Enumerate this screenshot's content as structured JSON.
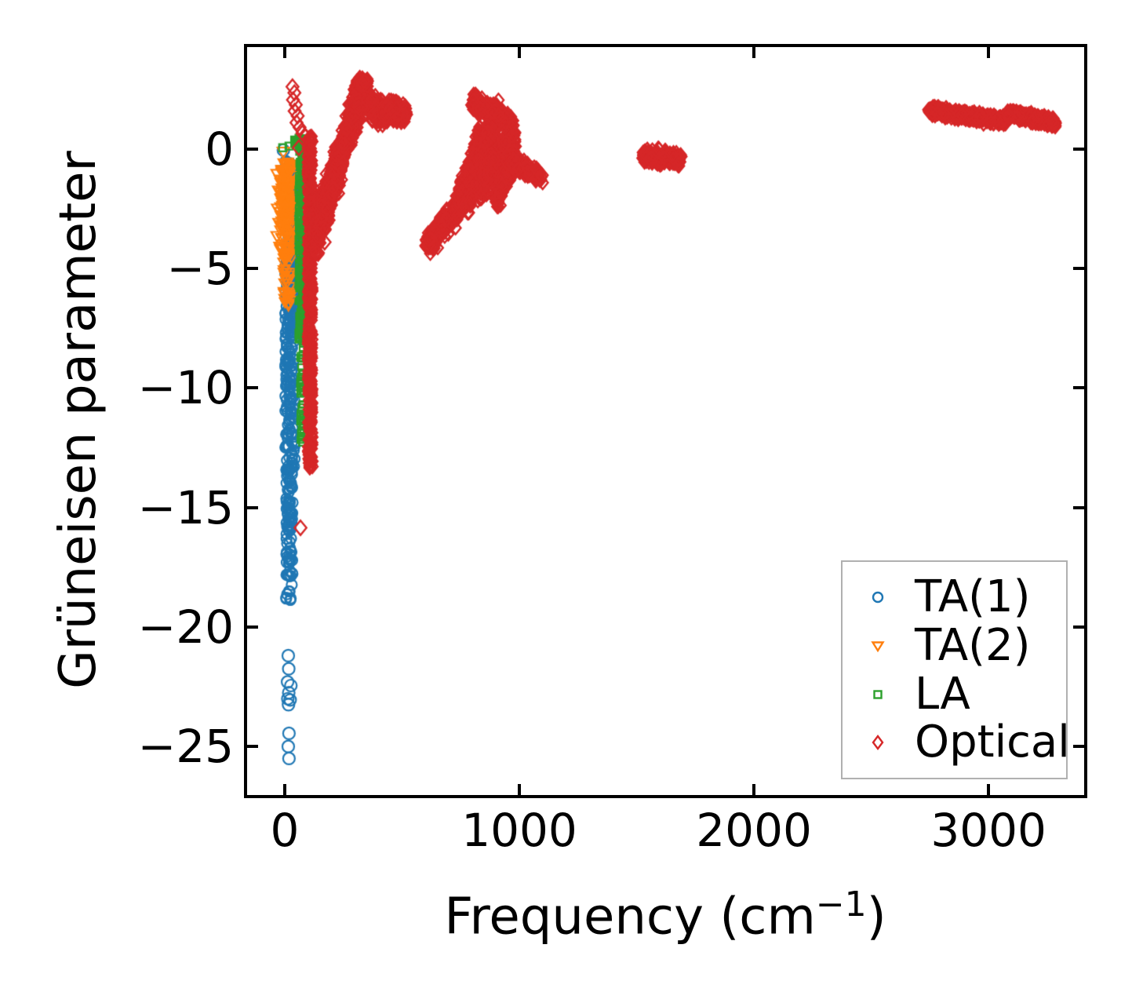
{
  "chart_data": {
    "type": "scatter",
    "title": "",
    "xlabel_parts": {
      "prefix": "Frequency (cm",
      "sup": "−1",
      "suffix": ")"
    },
    "ylabel": "Grüneisen parameter",
    "xlim": [
      -160.5,
      3407.5
    ],
    "ylim": [
      -27.03,
      4.26
    ],
    "grid": false,
    "legend_position": "lower right",
    "x_ticks": [
      {
        "value": 0,
        "label": "0"
      },
      {
        "value": 1000,
        "label": "1000"
      },
      {
        "value": 2000,
        "label": "2000"
      },
      {
        "value": 3000,
        "label": "3000"
      }
    ],
    "y_ticks": [
      {
        "value": 0,
        "label": "0"
      },
      {
        "value": -5,
        "label": "−5"
      },
      {
        "value": -10,
        "label": "−10"
      },
      {
        "value": -15,
        "label": "−15"
      },
      {
        "value": -20,
        "label": "−20"
      },
      {
        "value": -25,
        "label": "−25"
      }
    ],
    "series": [
      {
        "name": "TA(1)",
        "marker": "circle",
        "color": "#1f77b4",
        "size": 13,
        "lw": 2.2,
        "bands": [
          {
            "x0": 22,
            "y0": -0.5,
            "x1": 22,
            "y1": -13.5,
            "xw": 20,
            "w": 0.3,
            "n": 260
          },
          {
            "x0": 20,
            "y0": -13.5,
            "x1": 20,
            "y1": -18.9,
            "xw": 14,
            "w": 0.3,
            "n": 90
          },
          {
            "x0": 28,
            "y0": -1.0,
            "x1": 28,
            "y1": -8.0,
            "xw": 14,
            "w": 0.3,
            "n": 120
          }
        ],
        "points": [
          [
            -6,
            -0.05
          ],
          [
            38,
            -1.3
          ],
          [
            30,
            -2.0
          ],
          [
            24,
            -2.6
          ],
          [
            34,
            -3.2
          ],
          [
            15,
            -21.2
          ],
          [
            17,
            -21.75
          ],
          [
            12,
            -22.3
          ],
          [
            26,
            -22.45
          ],
          [
            17,
            -22.75
          ],
          [
            13,
            -23.0
          ],
          [
            23,
            -23.05
          ],
          [
            16,
            -23.25
          ],
          [
            18,
            -24.45
          ],
          [
            15,
            -25.0
          ],
          [
            18,
            -25.5
          ]
        ]
      },
      {
        "name": "TA(2)",
        "marker": "triangle-down",
        "color": "#ff7f0e",
        "size": 13,
        "lw": 2.2,
        "bands": [
          {
            "x0": 6,
            "y0": -0.5,
            "x1": 6,
            "y1": -4.3,
            "xw": 28,
            "w": 0.3,
            "n": 150
          },
          {
            "x0": 10,
            "y0": -4.3,
            "x1": 10,
            "y1": -6.5,
            "xw": 16,
            "w": 0.25,
            "n": 35
          }
        ],
        "points": [
          [
            -6,
            -0.12
          ],
          [
            -32,
            -1.05
          ],
          [
            -26,
            -1.75
          ],
          [
            -30,
            -2.5
          ],
          [
            -24,
            -3.1
          ],
          [
            -32,
            -3.65
          ],
          [
            -20,
            -4.1
          ]
        ]
      },
      {
        "name": "LA",
        "marker": "square",
        "color": "#2ca02c",
        "size": 10,
        "lw": 2.2,
        "bands": [
          {
            "x0": 71,
            "y0": 0.45,
            "x1": 71,
            "y1": -8.0,
            "xw": 13,
            "w": 0.25,
            "n": 230
          },
          {
            "x0": 73,
            "y0": -8.0,
            "x1": 73,
            "y1": -12.3,
            "xw": 8,
            "w": 0.25,
            "n": 50
          },
          {
            "x0": 42,
            "y0": 0.3,
            "x1": 78,
            "y1": 0.35,
            "xw": 4,
            "w": 0.2,
            "n": 45
          }
        ],
        "points": [
          [
            -9,
            0.05
          ],
          [
            18,
            0.12
          ]
        ]
      },
      {
        "name": "Optical",
        "marker": "diamond",
        "color": "#d62728",
        "size": 15,
        "lw": 2.4,
        "bands": [
          {
            "x0": 107,
            "y0": 0.4,
            "x1": 109,
            "y1": -13.3,
            "xw": 9,
            "w": 0.3,
            "n": 420
          },
          {
            "x0": 122,
            "y0": -3.5,
            "x1": 318,
            "y1": 2.1,
            "xw": 7,
            "w": 1.1,
            "n": 650
          },
          {
            "x0": 132,
            "y0": -4.0,
            "x1": 252,
            "y1": -0.3,
            "xw": 7,
            "w": 1.0,
            "n": 240
          },
          {
            "x0": 300,
            "y0": 2.25,
            "x1": 428,
            "y1": 1.5,
            "xw": 7,
            "w": 0.8,
            "n": 260
          },
          {
            "x0": 430,
            "y0": 1.55,
            "x1": 515,
            "y1": 1.5,
            "xw": 7,
            "w": 0.55,
            "n": 200
          },
          {
            "x0": 316,
            "y0": 2.8,
            "x1": 350,
            "y1": 2.65,
            "xw": 8,
            "w": 0.35,
            "n": 60
          },
          {
            "x0": 606,
            "y0": -4.0,
            "x1": 732,
            "y1": -2.55,
            "xw": 7,
            "w": 0.7,
            "n": 190
          },
          {
            "x0": 732,
            "y0": -2.55,
            "x1": 838,
            "y1": 0.4,
            "xw": 7,
            "w": 1.0,
            "n": 360
          },
          {
            "x0": 782,
            "y0": -2.2,
            "x1": 905,
            "y1": 1.7,
            "xw": 7,
            "w": 0.8,
            "n": 400
          },
          {
            "x0": 800,
            "y0": 1.95,
            "x1": 962,
            "y1": 1.15,
            "xw": 7,
            "w": 0.45,
            "n": 320
          },
          {
            "x0": 822,
            "y0": -1.7,
            "x1": 980,
            "y1": 0.6,
            "xw": 7,
            "w": 1.0,
            "n": 400
          },
          {
            "x0": 900,
            "y0": -2.1,
            "x1": 978,
            "y1": -0.35,
            "xw": 7,
            "w": 0.8,
            "n": 200
          },
          {
            "x0": 958,
            "y0": -0.55,
            "x1": 1098,
            "y1": -1.15,
            "xw": 6,
            "w": 0.4,
            "n": 140
          },
          {
            "x0": 1526,
            "y0": -0.28,
            "x1": 1688,
            "y1": -0.42,
            "xw": 6,
            "w": 0.45,
            "n": 170
          },
          {
            "x0": 2748,
            "y0": 1.6,
            "x1": 3076,
            "y1": 1.17,
            "xw": 6,
            "w": 0.28,
            "n": 400
          },
          {
            "x0": 3082,
            "y0": 1.48,
            "x1": 3290,
            "y1": 1.08,
            "xw": 6,
            "w": 0.28,
            "n": 260
          }
        ],
        "points": [
          [
            33,
            2.6
          ],
          [
            41,
            2.35
          ],
          [
            35,
            2.05
          ],
          [
            47,
            1.85
          ],
          [
            42,
            1.58
          ],
          [
            55,
            1.38
          ],
          [
            50,
            1.1
          ],
          [
            63,
            0.9
          ],
          [
            75,
            0.66
          ],
          [
            89,
            0.52
          ],
          [
            103,
            0.43
          ],
          [
            114,
            0.3
          ],
          [
            60,
            0.05
          ],
          [
            170,
            -3.9
          ],
          [
            67,
            -15.85
          ],
          [
            1096,
            -1.1
          ]
        ]
      }
    ]
  }
}
